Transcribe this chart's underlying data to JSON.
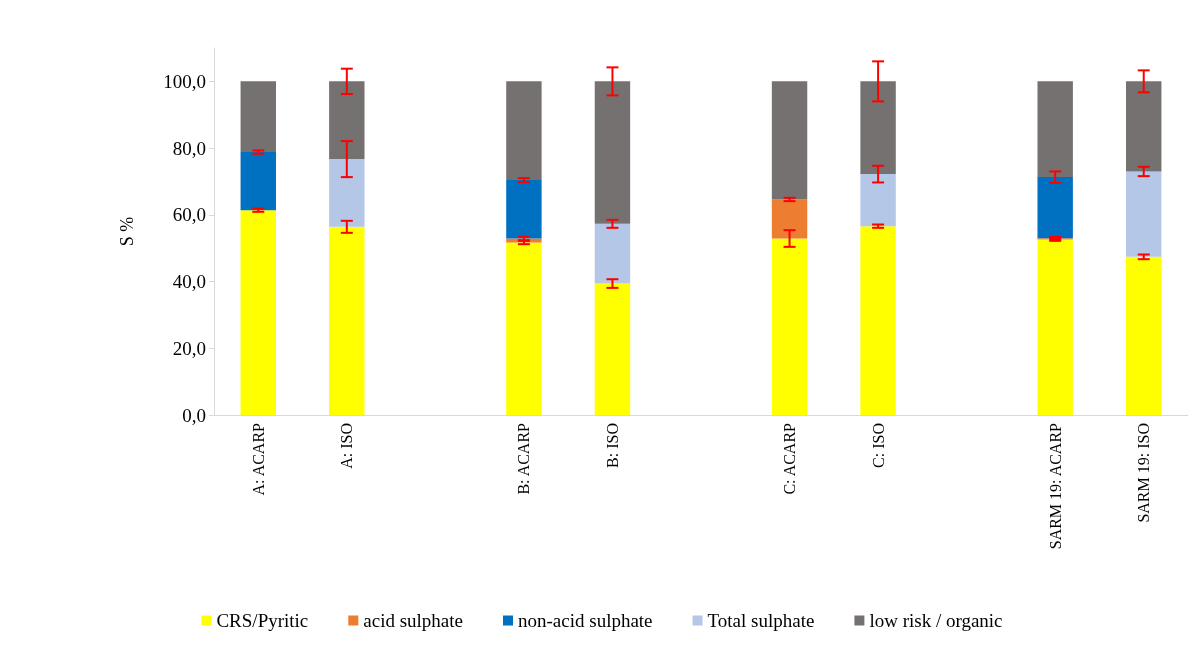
{
  "chart_data": {
    "type": "bar",
    "stacked": true,
    "ylabel": "S %",
    "categories": [
      "A: ACARP",
      "A: ISO",
      null,
      "B: ACARP",
      "B: ISO",
      null,
      "C: ACARP",
      "C: ISO",
      null,
      "SARM 19: ACARP",
      "SARM 19: ISO"
    ],
    "series": [
      {
        "name": "CRS/Pyritic",
        "color": "#ffff00",
        "values": [
          61.4,
          56.4,
          null,
          51.7,
          39.4,
          null,
          52.9,
          56.6,
          null,
          52.6,
          47.4
        ],
        "errors": [
          0.5,
          1.8,
          null,
          0.5,
          1.3,
          null,
          2.5,
          0.5,
          null,
          0.4,
          0.7
        ]
      },
      {
        "name": "acid sulphate",
        "color": "#ed7d31",
        "values": [
          null,
          null,
          null,
          1.2,
          null,
          null,
          11.7,
          null,
          null,
          0.4,
          null
        ],
        "errors": [
          null,
          null,
          null,
          0.5,
          null,
          null,
          0.5,
          null,
          null,
          0.4,
          null
        ]
      },
      {
        "name": "non-acid sulphate",
        "color": "#0070c0",
        "values": [
          17.4,
          null,
          null,
          17.5,
          null,
          null,
          null,
          null,
          null,
          18.3,
          null
        ],
        "errors": [
          0.5,
          null,
          null,
          0.6,
          null,
          null,
          null,
          null,
          null,
          1.7,
          null
        ]
      },
      {
        "name": "Total sulphate",
        "color": "#b4c7e7",
        "values": [
          null,
          20.3,
          null,
          null,
          17.9,
          null,
          null,
          15.6,
          null,
          null,
          25.6
        ],
        "errors": [
          null,
          5.4,
          null,
          null,
          1.2,
          null,
          null,
          2.5,
          null,
          null,
          1.4
        ]
      },
      {
        "name": "low risk / organic",
        "color": "#767171",
        "values": [
          21.2,
          23.3,
          null,
          29.6,
          42.7,
          null,
          35.4,
          27.8,
          null,
          28.7,
          27.0
        ],
        "errors": [
          null,
          3.8,
          null,
          null,
          4.2,
          null,
          null,
          6.0,
          null,
          null,
          3.3
        ]
      }
    ],
    "ylim": [
      0,
      110
    ],
    "yticks": [
      {
        "value": 0,
        "label": "0,0"
      },
      {
        "value": 20,
        "label": "20,0"
      },
      {
        "value": 40,
        "label": "40,0"
      },
      {
        "value": 60,
        "label": "60,0"
      },
      {
        "value": 80,
        "label": "80,0"
      },
      {
        "value": 100,
        "label": "100,0"
      }
    ],
    "grid": false,
    "legend": "bottom"
  }
}
